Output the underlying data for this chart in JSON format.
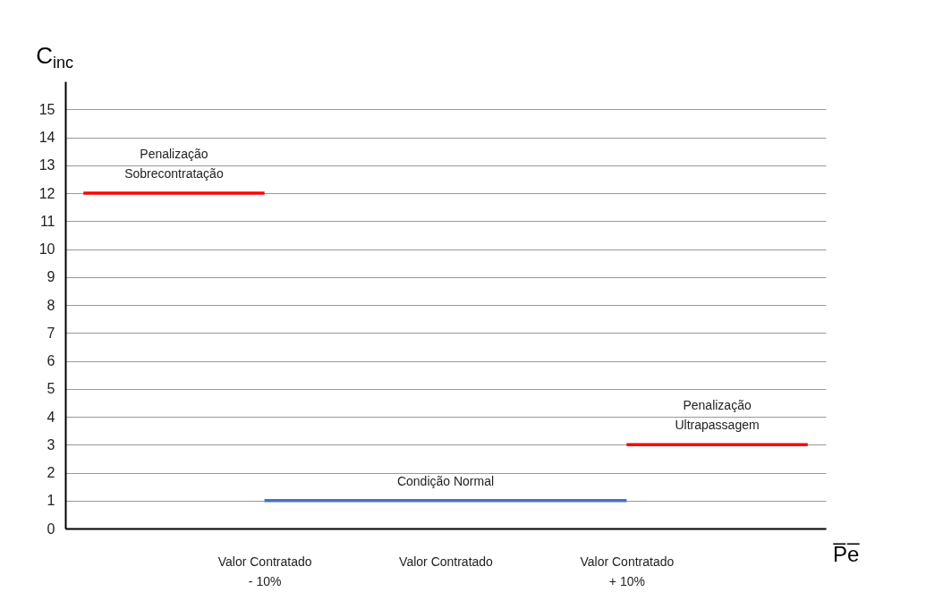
{
  "chart_data": {
    "type": "line",
    "xlabel": "P̅e̅",
    "ylabel": "C$_{inc}$",
    "categories": [
      null,
      "Valor Contratado\n- 10%",
      "Valor Contratado",
      "Valor Contratado\n+ 10%",
      null
    ],
    "ylim": [
      0,
      16
    ],
    "yticks": [
      0,
      1,
      2,
      3,
      4,
      5,
      6,
      7,
      8,
      9,
      10,
      11,
      12,
      13,
      14,
      15
    ],
    "grid": "y",
    "marker": "none",
    "line_style": "solid",
    "series": [
      {
        "color": "#ff0000",
        "values": [
          12,
          12,
          null,
          null,
          null
        ]
      },
      {
        "color": "#4472c4",
        "values": [
          null,
          1,
          1,
          1,
          null
        ]
      },
      {
        "color": "#ff0000",
        "values": [
          null,
          null,
          null,
          3,
          3
        ]
      }
    ],
    "annotations": [
      "Penalização\nSobrecontratação",
      "Condição Normal",
      "Penalização\nUltrapassagem"
    ]
  }
}
